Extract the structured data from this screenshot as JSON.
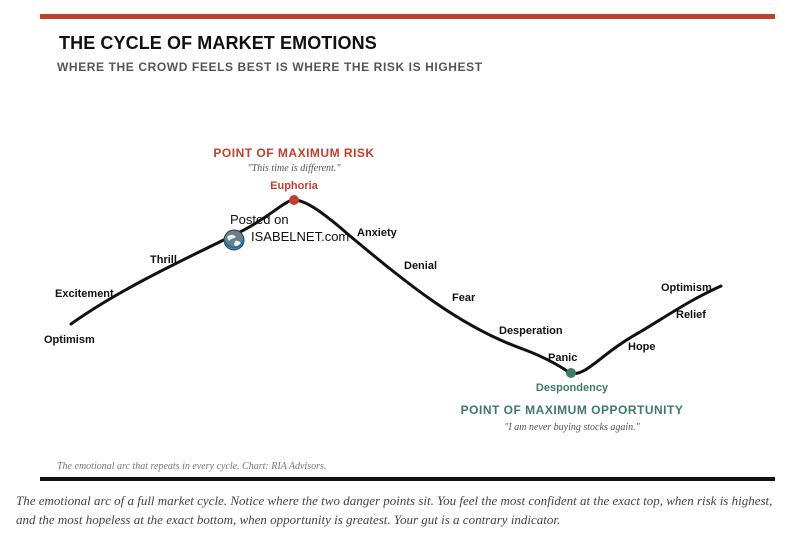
{
  "figure": {
    "title": "THE CYCLE OF MARKET EMOTIONS",
    "subtitle": "WHERE THE CROWD FEELS BEST IS WHERE THE RISK IS HIGHEST",
    "source_note": "The emotional arc that repeats in every cycle. Chart: RIA Advisors.",
    "accent_color": "#c0402e",
    "opportunity_color": "#3c7a6b",
    "curve_color": "#111111"
  },
  "stages": {
    "optimism_start": "Optimism",
    "excitement": "Excitement",
    "thrill": "Thrill",
    "euphoria": "Euphoria",
    "anxiety": "Anxiety",
    "denial": "Denial",
    "fear": "Fear",
    "desperation": "Desperation",
    "panic": "Panic",
    "despondency": "Despondency",
    "hope": "Hope",
    "relief": "Relief",
    "optimism_end": "Optimism"
  },
  "callouts": {
    "max_risk": {
      "label": "POINT OF MAXIMUM RISK",
      "quote": "\"This time is different.\""
    },
    "max_opportunity": {
      "label": "POINT OF MAXIMUM OPPORTUNITY",
      "quote": "\"I am never buying stocks again.\""
    }
  },
  "watermark": {
    "line1": "Posted on",
    "line2": "ISABELNET.com",
    "logo_icon": "globe-logo-icon"
  },
  "caption": "The emotional arc of a full market cycle. Notice where the two danger points sit. You feel the most confident at the exact top, when risk is highest, and the most hopeless at the exact bottom, when opportunity is greatest. Your gut is a contrary indicator."
}
